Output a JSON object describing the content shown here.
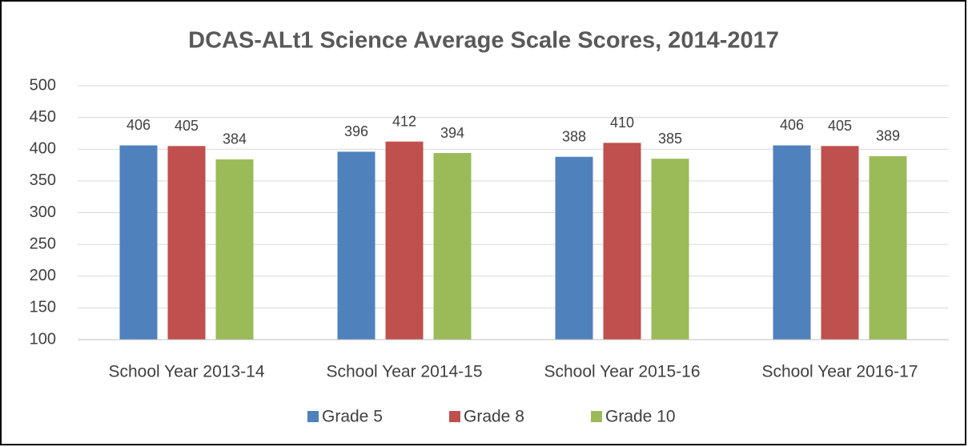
{
  "chart_data": {
    "type": "bar",
    "title": "DCAS-ALt1 Science Average Scale Scores, 2014-2017",
    "categories": [
      "School Year 2013-14",
      "School Year 2014-15",
      "School Year 2015-16",
      "School Year 2016-17"
    ],
    "series": [
      {
        "name": "Grade 5",
        "color": "#4f81bd",
        "values": [
          406,
          396,
          388,
          406
        ]
      },
      {
        "name": "Grade 8",
        "color": "#c0504d",
        "values": [
          405,
          412,
          410,
          405
        ]
      },
      {
        "name": "Grade 10",
        "color": "#9bbb59",
        "values": [
          384,
          394,
          385,
          389
        ]
      }
    ],
    "ylim": [
      100,
      500
    ],
    "yticks": [
      100,
      150,
      200,
      250,
      300,
      350,
      400,
      450,
      500
    ],
    "grid": true,
    "legend": "bottom"
  }
}
